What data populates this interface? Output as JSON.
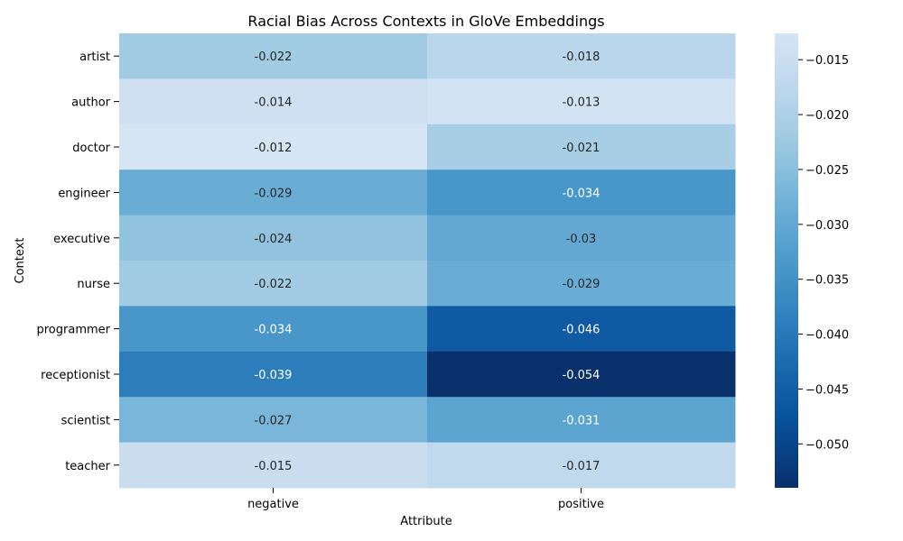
{
  "chart_data": {
    "type": "heatmap",
    "title": "Racial Bias Across Contexts in GloVe Embeddings",
    "xlabel": "Attribute",
    "ylabel": "Context",
    "x_categories": [
      "negative",
      "positive"
    ],
    "y_categories": [
      "artist",
      "author",
      "doctor",
      "engineer",
      "executive",
      "nurse",
      "programmer",
      "receptionist",
      "scientist",
      "teacher"
    ],
    "values": [
      [
        -0.022,
        -0.018
      ],
      [
        -0.014,
        -0.013
      ],
      [
        -0.012,
        -0.021
      ],
      [
        -0.029,
        -0.034
      ],
      [
        -0.024,
        -0.03
      ],
      [
        -0.022,
        -0.029
      ],
      [
        -0.034,
        -0.046
      ],
      [
        -0.039,
        -0.054
      ],
      [
        -0.027,
        -0.031
      ],
      [
        -0.015,
        -0.017
      ]
    ],
    "cell_labels": [
      [
        "-0.022",
        "-0.018"
      ],
      [
        "-0.014",
        "-0.013"
      ],
      [
        "-0.012",
        "-0.021"
      ],
      [
        "-0.029",
        "-0.034"
      ],
      [
        "-0.024",
        "-0.03"
      ],
      [
        "-0.022",
        "-0.029"
      ],
      [
        "-0.034",
        "-0.046"
      ],
      [
        "-0.039",
        "-0.054"
      ],
      [
        "-0.027",
        "-0.031"
      ],
      [
        "-0.015",
        "-0.017"
      ]
    ],
    "colormap": "Blues_r",
    "color_range": [
      -0.054,
      -0.0126
    ],
    "colorbar_ticks": [
      -0.05,
      -0.045,
      -0.04,
      -0.035,
      -0.03,
      -0.025,
      -0.02,
      -0.015
    ],
    "colorbar_tick_labels": [
      "−0.050",
      "−0.045",
      "−0.040",
      "−0.035",
      "−0.030",
      "−0.025",
      "−0.020",
      "−0.015"
    ],
    "grid": false,
    "legend": "colorbar-right"
  }
}
